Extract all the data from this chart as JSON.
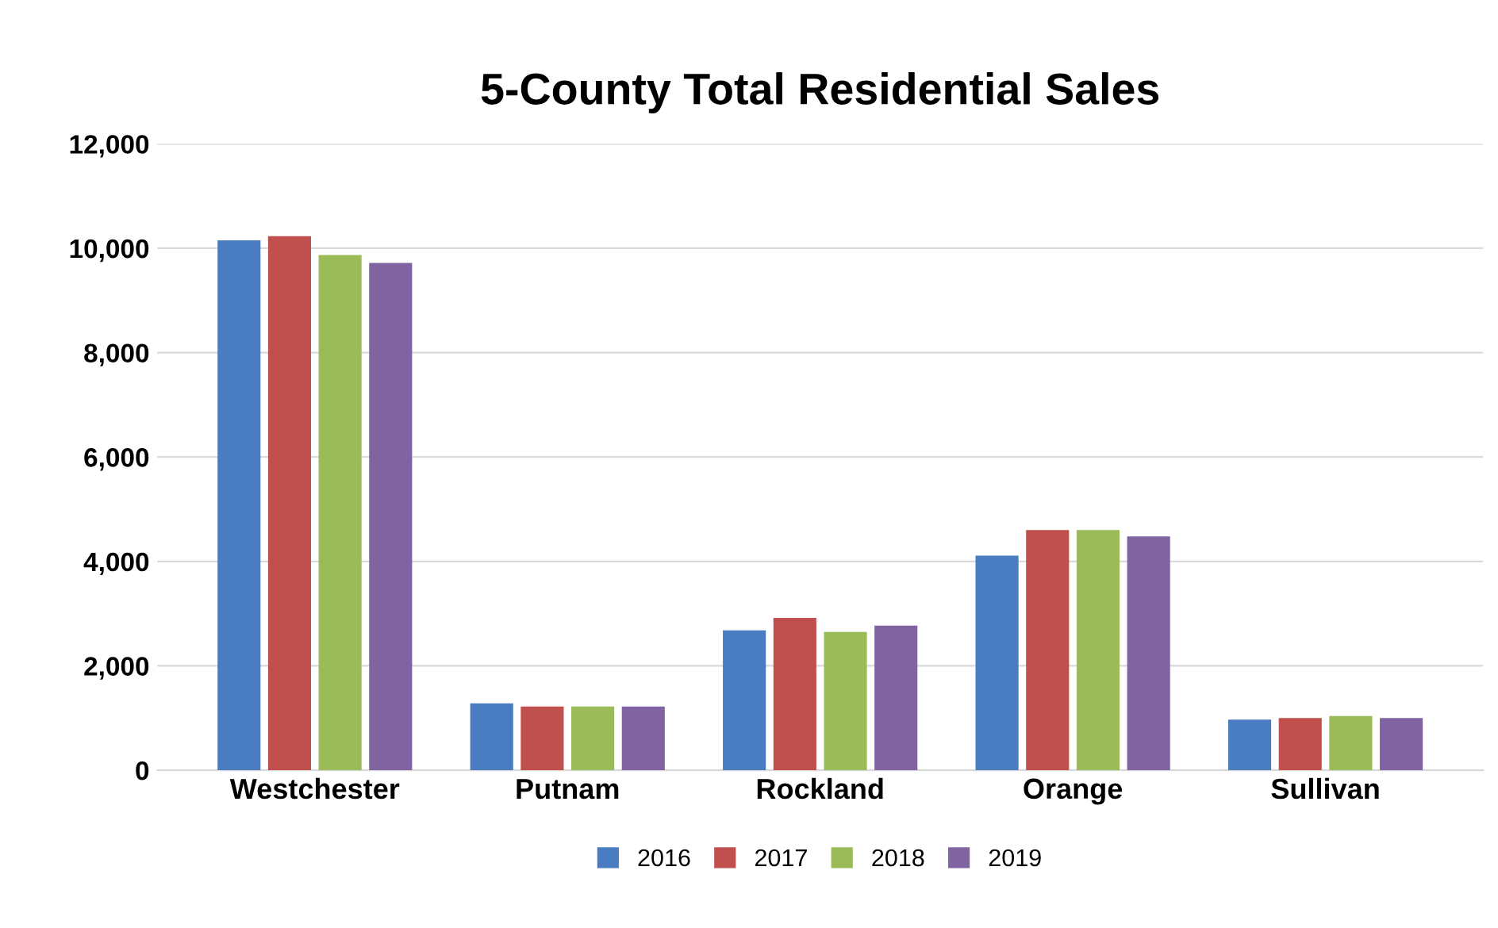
{
  "chart_data": {
    "type": "bar",
    "title": "5-County Total Residential Sales",
    "categories": [
      "Westchester",
      "Putnam",
      "Rockland",
      "Orange",
      "Sullivan"
    ],
    "series": [
      {
        "name": "2016",
        "color": "#4a7cc1",
        "values": [
          10150,
          1280,
          2680,
          4110,
          970
        ]
      },
      {
        "name": "2017",
        "color": "#c0504d",
        "values": [
          10230,
          1220,
          2920,
          4600,
          1000
        ]
      },
      {
        "name": "2018",
        "color": "#9bbb59",
        "values": [
          9870,
          1220,
          2650,
          4600,
          1040
        ]
      },
      {
        "name": "2019",
        "color": "#8064a2",
        "values": [
          9720,
          1220,
          2770,
          4480,
          1000
        ]
      }
    ],
    "ylim": [
      0,
      12000
    ],
    "yticks": [
      {
        "value": 0,
        "label": "0"
      },
      {
        "value": 2000,
        "label": "2,000"
      },
      {
        "value": 4000,
        "label": "4,000"
      },
      {
        "value": 6000,
        "label": "6,000"
      },
      {
        "value": 8000,
        "label": "8,000"
      },
      {
        "value": 10000,
        "label": "10,000"
      },
      {
        "value": 12000,
        "label": "12,000"
      }
    ],
    "grid": "y",
    "legend": "bottom"
  }
}
